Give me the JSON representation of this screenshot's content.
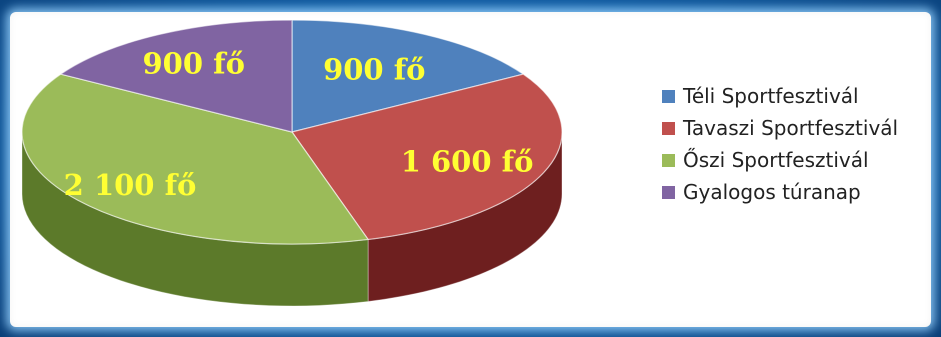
{
  "chart_data": {
    "type": "pie",
    "style": "3d",
    "categories": [
      "Téli Sportfesztivál",
      "Tavaszi Sportfesztivál",
      "Őszi Sportfesztivál",
      "Gyalogos túranap"
    ],
    "values": [
      900,
      1600,
      2100,
      900
    ],
    "data_labels": [
      "900 fő",
      "1 600 fő",
      "2 100 fő",
      "900 fő"
    ],
    "colors": [
      "#4f81bd",
      "#c0504d",
      "#9bbb59",
      "#8064a2"
    ],
    "side_colors": [
      "#2f5f8f",
      "#6e1f1f",
      "#5c7a2a",
      "#4e3a6b"
    ],
    "label_color": "#ffff33",
    "legend_position": "right"
  }
}
